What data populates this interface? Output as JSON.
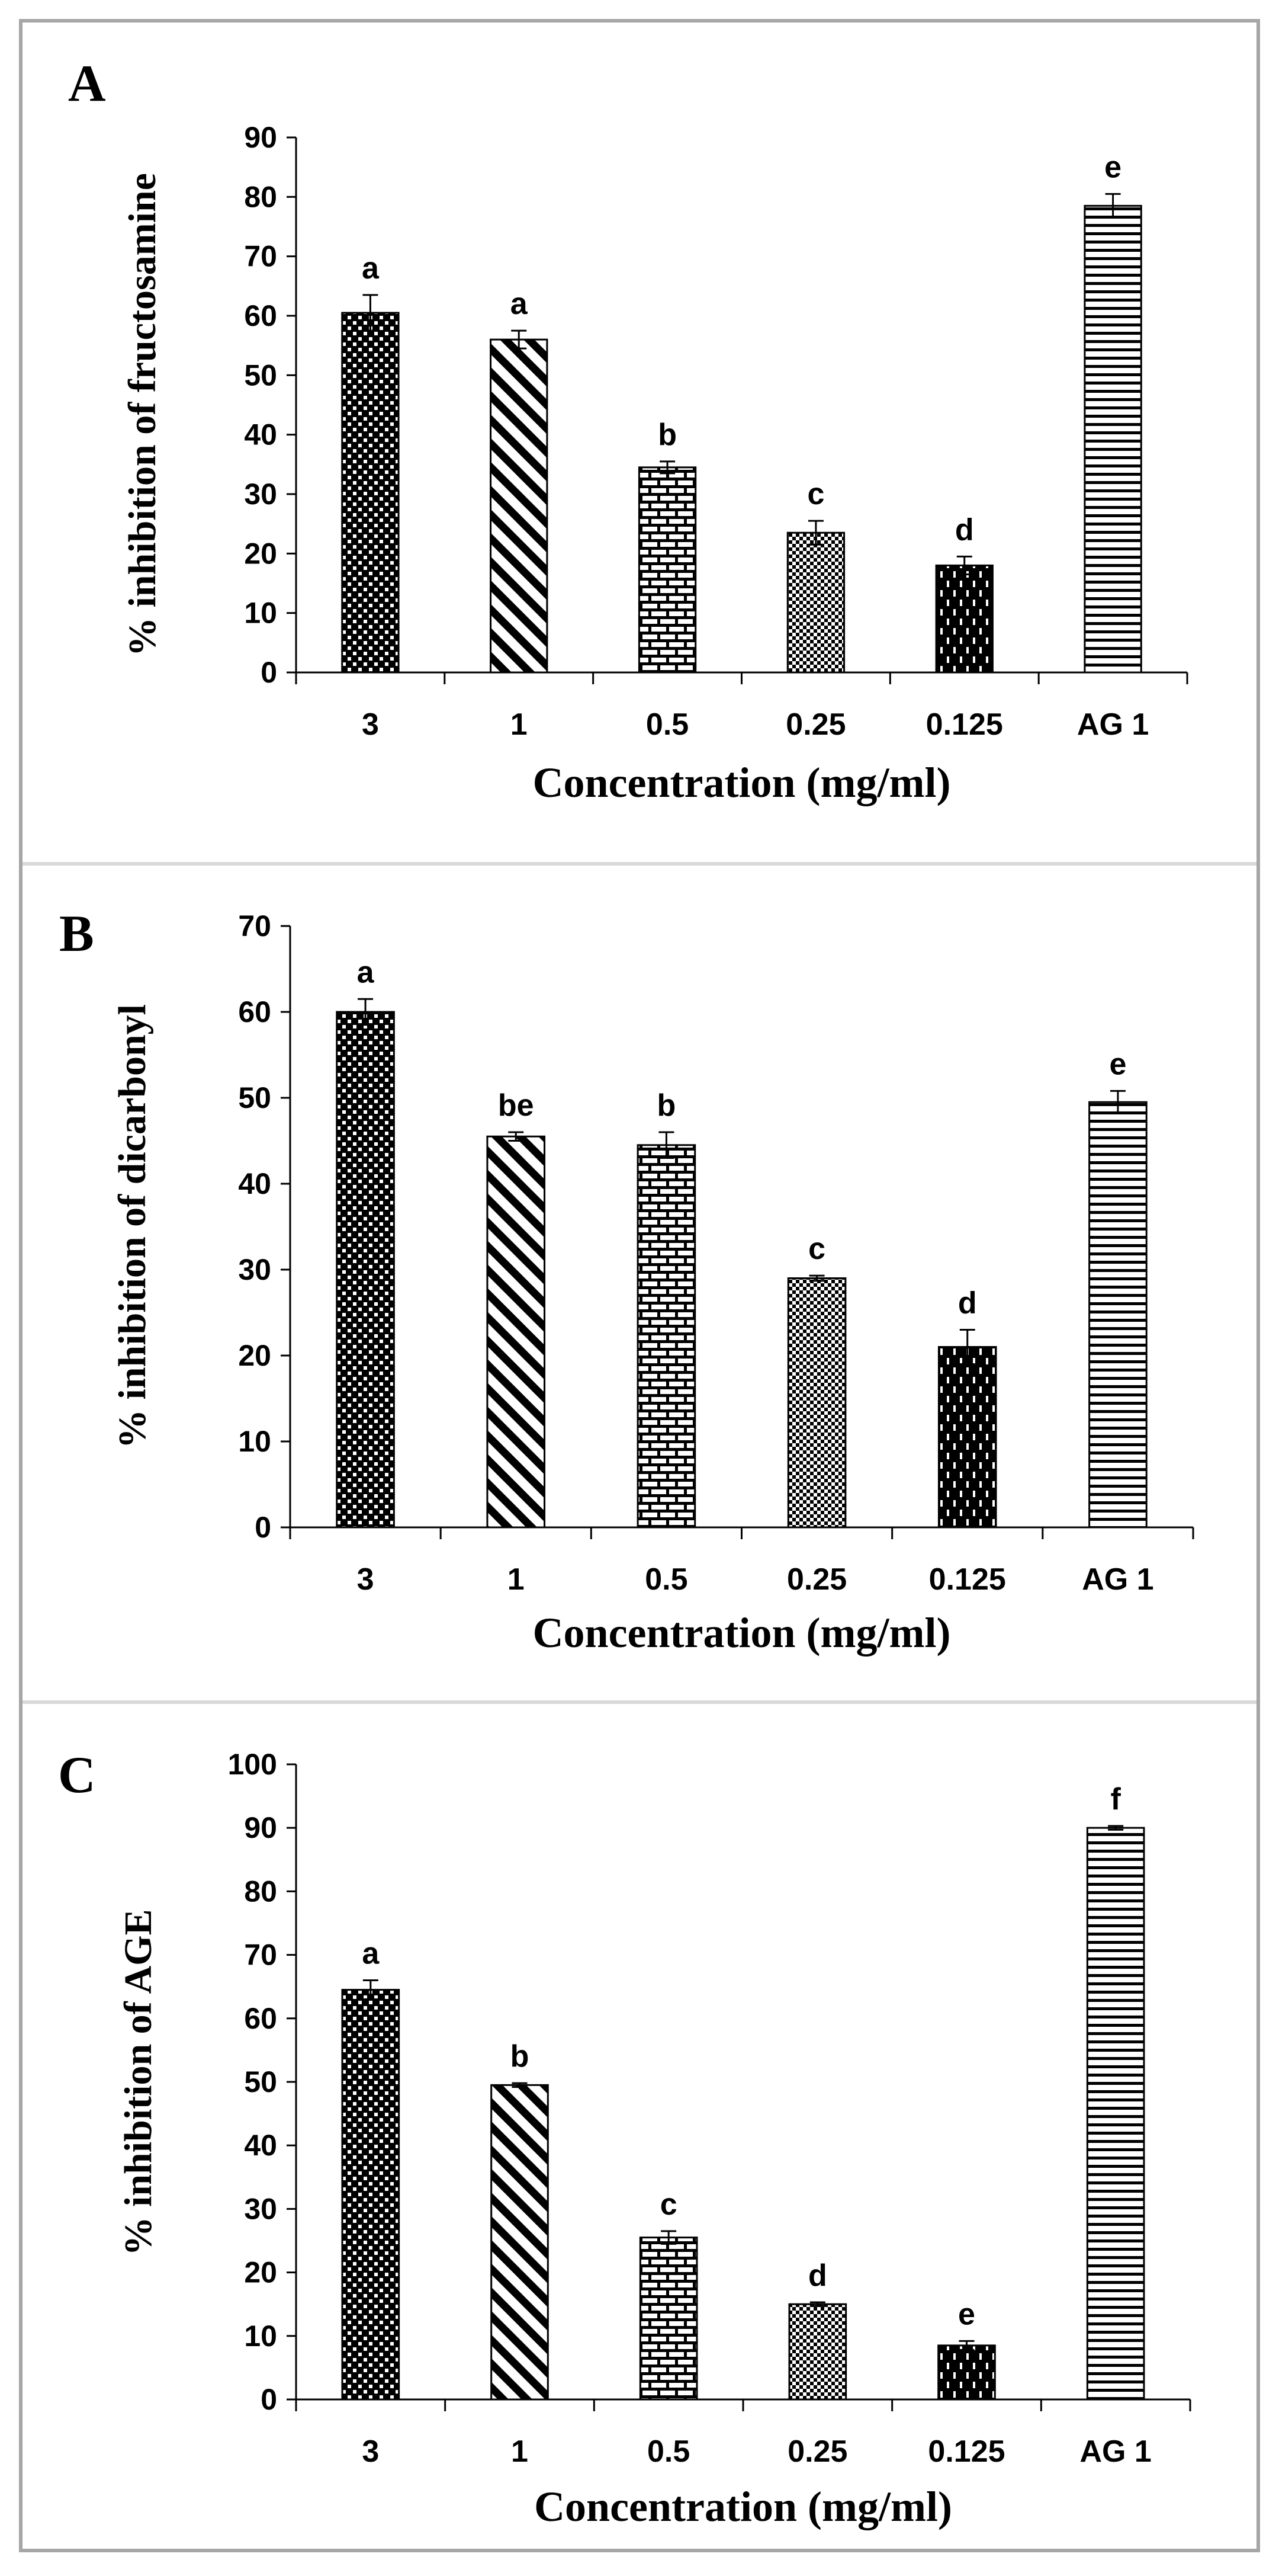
{
  "chart_data": [
    {
      "type": "bar",
      "panel": "A",
      "categories": [
        "3",
        "1",
        "0.5",
        "0.25",
        "0.125",
        "AG 1"
      ],
      "values": [
        60.5,
        56,
        34.5,
        23.5,
        18,
        78.5
      ],
      "errors": [
        3,
        1.5,
        1,
        2,
        1.5,
        2
      ],
      "significance": [
        "a",
        "a",
        "b",
        "c",
        "d",
        "e"
      ],
      "xlabel": "Concentration (mg/ml)",
      "ylabel": "% inhibition of fructosamine",
      "ylim": [
        0,
        90
      ],
      "yticks": [
        0,
        10,
        20,
        30,
        40,
        50,
        60,
        70,
        80,
        90
      ],
      "yticklabels": [
        "0",
        "10",
        "20",
        "30",
        "40",
        "50",
        "60",
        "70",
        "80",
        "90"
      ],
      "patterns": [
        "pat-dots",
        "pat-diag",
        "pat-brick",
        "pat-check",
        "pat-dash",
        "pat-hlines"
      ]
    },
    {
      "type": "bar",
      "panel": "B",
      "categories": [
        "3",
        "1",
        "0.5",
        "0.25",
        "0.125",
        "AG 1"
      ],
      "values": [
        60,
        45.5,
        44.5,
        29,
        21,
        49.5
      ],
      "errors": [
        1.5,
        0.5,
        1.5,
        0.3,
        2,
        1.3
      ],
      "significance": [
        "a",
        "be",
        "b",
        "c",
        "d",
        "e"
      ],
      "xlabel": "Concentration (mg/ml)",
      "ylabel": "% inhibition of dicarbonyl",
      "ylim": [
        0,
        70
      ],
      "yticks": [
        0,
        10,
        20,
        30,
        40,
        50,
        60,
        70
      ],
      "yticklabels": [
        "0",
        "10",
        "20",
        "30",
        "40",
        "50",
        "60",
        "70"
      ],
      "patterns": [
        "pat-dots",
        "pat-diag",
        "pat-brick",
        "pat-check",
        "pat-dash",
        "pat-hlines"
      ]
    },
    {
      "type": "bar",
      "panel": "C",
      "categories": [
        "3",
        "1",
        "0.5",
        "0.25",
        "0.125",
        "AG 1"
      ],
      "values": [
        64.5,
        49.5,
        25.5,
        15,
        8.5,
        90
      ],
      "errors": [
        1.5,
        0.3,
        1,
        0.3,
        0.7,
        0.3
      ],
      "significance": [
        "a",
        "b",
        "c",
        "d",
        "e",
        "f"
      ],
      "xlabel": "Concentration (mg/ml)",
      "ylabel": "% inhibition of AGE",
      "ylim": [
        0,
        100
      ],
      "yticks": [
        0,
        10,
        20,
        30,
        40,
        50,
        60,
        70,
        80,
        90,
        100
      ],
      "yticklabels": [
        "0",
        "10",
        "20",
        "30",
        "40",
        "50",
        "60",
        "70",
        "80",
        "90",
        "100"
      ],
      "patterns": [
        "pat-dots",
        "pat-diag",
        "pat-brick",
        "pat-check",
        "pat-dash",
        "pat-hlines"
      ]
    }
  ],
  "colors": {
    "bar_stroke": "#000000",
    "frame": "#a6a6a6",
    "divider": "#d9d9d9",
    "text": "#000000"
  }
}
